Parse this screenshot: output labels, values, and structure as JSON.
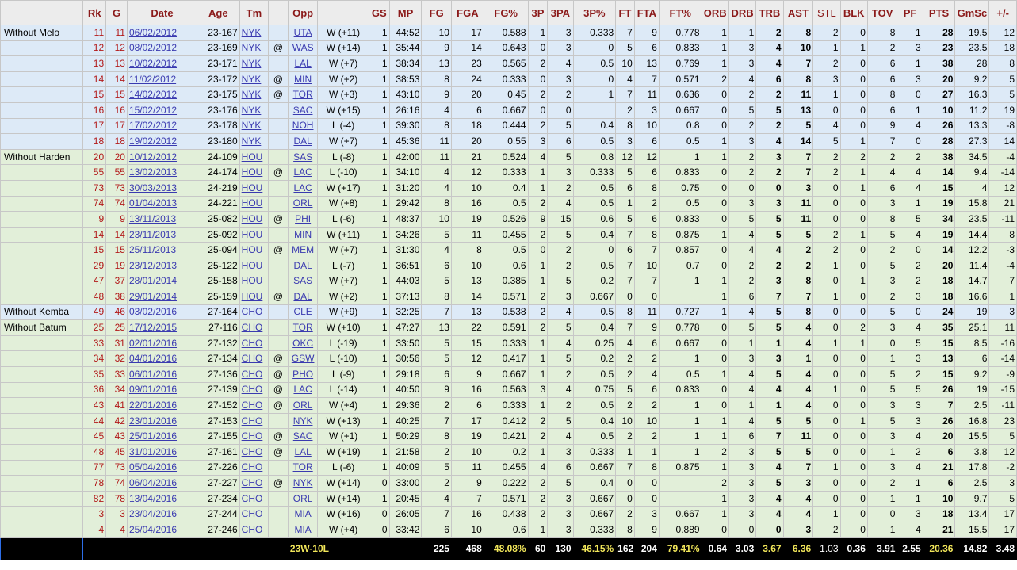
{
  "columns": [
    "",
    "Rk",
    "G",
    "Date",
    "Age",
    "Tm",
    "",
    "Opp",
    "",
    "GS",
    "MP",
    "FG",
    "FGA",
    "FG%",
    "3P",
    "3PA",
    "3P%",
    "FT",
    "FTA",
    "FT%",
    "ORB",
    "DRB",
    "TRB",
    "AST",
    "STL",
    "BLK",
    "TOV",
    "PF",
    "PTS",
    "GmSc",
    "+/-"
  ],
  "rows": [
    [
      "Without Melo",
      "11",
      "11",
      "06/02/2012",
      "23-167",
      "NYK",
      "",
      "UTA",
      "W (+11)",
      "1",
      "44:52",
      "10",
      "17",
      "0.588",
      "1",
      "3",
      "0.333",
      "7",
      "9",
      "0.778",
      "1",
      "1",
      "2",
      "8",
      "2",
      "0",
      "8",
      "1",
      "28",
      "19.5",
      "12"
    ],
    [
      "",
      "12",
      "12",
      "08/02/2012",
      "23-169",
      "NYK",
      "@",
      "WAS",
      "W (+14)",
      "1",
      "35:44",
      "9",
      "14",
      "0.643",
      "0",
      "3",
      "0",
      "5",
      "6",
      "0.833",
      "1",
      "3",
      "4",
      "10",
      "1",
      "1",
      "2",
      "3",
      "23",
      "23.5",
      "18"
    ],
    [
      "",
      "13",
      "13",
      "10/02/2012",
      "23-171",
      "NYK",
      "",
      "LAL",
      "W (+7)",
      "1",
      "38:34",
      "13",
      "23",
      "0.565",
      "2",
      "4",
      "0.5",
      "10",
      "13",
      "0.769",
      "1",
      "3",
      "4",
      "7",
      "2",
      "0",
      "6",
      "1",
      "38",
      "28",
      "8"
    ],
    [
      "",
      "14",
      "14",
      "11/02/2012",
      "23-172",
      "NYK",
      "@",
      "MIN",
      "W (+2)",
      "1",
      "38:53",
      "8",
      "24",
      "0.333",
      "0",
      "3",
      "0",
      "4",
      "7",
      "0.571",
      "2",
      "4",
      "6",
      "8",
      "3",
      "0",
      "6",
      "3",
      "20",
      "9.2",
      "5"
    ],
    [
      "",
      "15",
      "15",
      "14/02/2012",
      "23-175",
      "NYK",
      "@",
      "TOR",
      "W (+3)",
      "1",
      "43:10",
      "9",
      "20",
      "0.45",
      "2",
      "2",
      "1",
      "7",
      "11",
      "0.636",
      "0",
      "2",
      "2",
      "11",
      "1",
      "0",
      "8",
      "0",
      "27",
      "16.3",
      "5"
    ],
    [
      "",
      "16",
      "16",
      "15/02/2012",
      "23-176",
      "NYK",
      "",
      "SAC",
      "W (+15)",
      "1",
      "26:16",
      "4",
      "6",
      "0.667",
      "0",
      "0",
      "",
      "2",
      "3",
      "0.667",
      "0",
      "5",
      "5",
      "13",
      "0",
      "0",
      "6",
      "1",
      "10",
      "11.2",
      "19"
    ],
    [
      "",
      "17",
      "17",
      "17/02/2012",
      "23-178",
      "NYK",
      "",
      "NOH",
      "L (-4)",
      "1",
      "39:30",
      "8",
      "18",
      "0.444",
      "2",
      "5",
      "0.4",
      "8",
      "10",
      "0.8",
      "0",
      "2",
      "2",
      "5",
      "4",
      "0",
      "9",
      "4",
      "26",
      "13.3",
      "-8"
    ],
    [
      "",
      "18",
      "18",
      "19/02/2012",
      "23-180",
      "NYK",
      "",
      "DAL",
      "W (+7)",
      "1",
      "45:36",
      "11",
      "20",
      "0.55",
      "3",
      "6",
      "0.5",
      "3",
      "6",
      "0.5",
      "1",
      "3",
      "4",
      "14",
      "5",
      "1",
      "7",
      "0",
      "28",
      "27.3",
      "14"
    ],
    [
      "Without Harden",
      "20",
      "20",
      "10/12/2012",
      "24-109",
      "HOU",
      "",
      "SAS",
      "L (-8)",
      "1",
      "42:00",
      "11",
      "21",
      "0.524",
      "4",
      "5",
      "0.8",
      "12",
      "12",
      "1",
      "1",
      "2",
      "3",
      "7",
      "2",
      "2",
      "2",
      "2",
      "38",
      "34.5",
      "-4"
    ],
    [
      "",
      "55",
      "55",
      "13/02/2013",
      "24-174",
      "HOU",
      "@",
      "LAC",
      "L (-10)",
      "1",
      "34:10",
      "4",
      "12",
      "0.333",
      "1",
      "3",
      "0.333",
      "5",
      "6",
      "0.833",
      "0",
      "2",
      "2",
      "7",
      "2",
      "1",
      "4",
      "4",
      "14",
      "9.4",
      "-14"
    ],
    [
      "",
      "73",
      "73",
      "30/03/2013",
      "24-219",
      "HOU",
      "",
      "LAC",
      "W (+17)",
      "1",
      "31:20",
      "4",
      "10",
      "0.4",
      "1",
      "2",
      "0.5",
      "6",
      "8",
      "0.75",
      "0",
      "0",
      "0",
      "3",
      "0",
      "1",
      "6",
      "4",
      "15",
      "4",
      "12"
    ],
    [
      "",
      "74",
      "74",
      "01/04/2013",
      "24-221",
      "HOU",
      "",
      "ORL",
      "W (+8)",
      "1",
      "29:42",
      "8",
      "16",
      "0.5",
      "2",
      "4",
      "0.5",
      "1",
      "2",
      "0.5",
      "0",
      "3",
      "3",
      "11",
      "0",
      "0",
      "3",
      "1",
      "19",
      "15.8",
      "21"
    ],
    [
      "",
      "9",
      "9",
      "13/11/2013",
      "25-082",
      "HOU",
      "@",
      "PHI",
      "L (-6)",
      "1",
      "48:37",
      "10",
      "19",
      "0.526",
      "9",
      "15",
      "0.6",
      "5",
      "6",
      "0.833",
      "0",
      "5",
      "5",
      "11",
      "0",
      "0",
      "8",
      "5",
      "34",
      "23.5",
      "-11"
    ],
    [
      "",
      "14",
      "14",
      "23/11/2013",
      "25-092",
      "HOU",
      "",
      "MIN",
      "W (+11)",
      "1",
      "34:26",
      "5",
      "11",
      "0.455",
      "2",
      "5",
      "0.4",
      "7",
      "8",
      "0.875",
      "1",
      "4",
      "5",
      "5",
      "2",
      "1",
      "5",
      "4",
      "19",
      "14.4",
      "8"
    ],
    [
      "",
      "15",
      "15",
      "25/11/2013",
      "25-094",
      "HOU",
      "@",
      "MEM",
      "W (+7)",
      "1",
      "31:30",
      "4",
      "8",
      "0.5",
      "0",
      "2",
      "0",
      "6",
      "7",
      "0.857",
      "0",
      "4",
      "4",
      "2",
      "2",
      "0",
      "2",
      "0",
      "14",
      "12.2",
      "-3"
    ],
    [
      "",
      "29",
      "19",
      "23/12/2013",
      "25-122",
      "HOU",
      "",
      "DAL",
      "L (-7)",
      "1",
      "36:51",
      "6",
      "10",
      "0.6",
      "1",
      "2",
      "0.5",
      "7",
      "10",
      "0.7",
      "0",
      "2",
      "2",
      "2",
      "1",
      "0",
      "5",
      "2",
      "20",
      "11.4",
      "-4"
    ],
    [
      "",
      "47",
      "37",
      "28/01/2014",
      "25-158",
      "HOU",
      "",
      "SAS",
      "W (+7)",
      "1",
      "44:03",
      "5",
      "13",
      "0.385",
      "1",
      "5",
      "0.2",
      "7",
      "7",
      "1",
      "1",
      "2",
      "3",
      "8",
      "0",
      "1",
      "3",
      "2",
      "18",
      "14.7",
      "7"
    ],
    [
      "",
      "48",
      "38",
      "29/01/2014",
      "25-159",
      "HOU",
      "@",
      "DAL",
      "W (+2)",
      "1",
      "37:13",
      "8",
      "14",
      "0.571",
      "2",
      "3",
      "0.667",
      "0",
      "0",
      "",
      "1",
      "6",
      "7",
      "7",
      "1",
      "0",
      "2",
      "3",
      "18",
      "16.6",
      "1"
    ],
    [
      "Without Kemba",
      "49",
      "46",
      "03/02/2016",
      "27-164",
      "CHO",
      "",
      "CLE",
      "W (+9)",
      "1",
      "32:25",
      "7",
      "13",
      "0.538",
      "2",
      "4",
      "0.5",
      "8",
      "11",
      "0.727",
      "1",
      "4",
      "5",
      "8",
      "0",
      "0",
      "5",
      "0",
      "24",
      "19",
      "3"
    ],
    [
      "Without Batum",
      "25",
      "25",
      "17/12/2015",
      "27-116",
      "CHO",
      "",
      "TOR",
      "W (+10)",
      "1",
      "47:27",
      "13",
      "22",
      "0.591",
      "2",
      "5",
      "0.4",
      "7",
      "9",
      "0.778",
      "0",
      "5",
      "5",
      "4",
      "0",
      "2",
      "3",
      "4",
      "35",
      "25.1",
      "11"
    ],
    [
      "",
      "33",
      "31",
      "02/01/2016",
      "27-132",
      "CHO",
      "",
      "OKC",
      "L (-19)",
      "1",
      "33:50",
      "5",
      "15",
      "0.333",
      "1",
      "4",
      "0.25",
      "4",
      "6",
      "0.667",
      "0",
      "1",
      "1",
      "4",
      "1",
      "1",
      "0",
      "5",
      "15",
      "8.5",
      "-16"
    ],
    [
      "",
      "34",
      "32",
      "04/01/2016",
      "27-134",
      "CHO",
      "@",
      "GSW",
      "L (-10)",
      "1",
      "30:56",
      "5",
      "12",
      "0.417",
      "1",
      "5",
      "0.2",
      "2",
      "2",
      "1",
      "0",
      "3",
      "3",
      "1",
      "0",
      "0",
      "1",
      "3",
      "13",
      "6",
      "-14"
    ],
    [
      "",
      "35",
      "33",
      "06/01/2016",
      "27-136",
      "CHO",
      "@",
      "PHO",
      "L (-9)",
      "1",
      "29:18",
      "6",
      "9",
      "0.667",
      "1",
      "2",
      "0.5",
      "2",
      "4",
      "0.5",
      "1",
      "4",
      "5",
      "4",
      "0",
      "0",
      "5",
      "2",
      "15",
      "9.2",
      "-9"
    ],
    [
      "",
      "36",
      "34",
      "09/01/2016",
      "27-139",
      "CHO",
      "@",
      "LAC",
      "L (-14)",
      "1",
      "40:50",
      "9",
      "16",
      "0.563",
      "3",
      "4",
      "0.75",
      "5",
      "6",
      "0.833",
      "0",
      "4",
      "4",
      "4",
      "1",
      "0",
      "5",
      "5",
      "26",
      "19",
      "-15"
    ],
    [
      "",
      "43",
      "41",
      "22/01/2016",
      "27-152",
      "CHO",
      "@",
      "ORL",
      "W (+4)",
      "1",
      "29:36",
      "2",
      "6",
      "0.333",
      "1",
      "2",
      "0.5",
      "2",
      "2",
      "1",
      "0",
      "1",
      "1",
      "4",
      "0",
      "0",
      "3",
      "3",
      "7",
      "2.5",
      "-11"
    ],
    [
      "",
      "44",
      "42",
      "23/01/2016",
      "27-153",
      "CHO",
      "",
      "NYK",
      "W (+13)",
      "1",
      "40:25",
      "7",
      "17",
      "0.412",
      "2",
      "5",
      "0.4",
      "10",
      "10",
      "1",
      "1",
      "4",
      "5",
      "5",
      "0",
      "1",
      "5",
      "3",
      "26",
      "16.8",
      "23"
    ],
    [
      "",
      "45",
      "43",
      "25/01/2016",
      "27-155",
      "CHO",
      "@",
      "SAC",
      "W (+1)",
      "1",
      "50:29",
      "8",
      "19",
      "0.421",
      "2",
      "4",
      "0.5",
      "2",
      "2",
      "1",
      "1",
      "6",
      "7",
      "11",
      "0",
      "0",
      "3",
      "4",
      "20",
      "15.5",
      "5"
    ],
    [
      "",
      "48",
      "45",
      "31/01/2016",
      "27-161",
      "CHO",
      "@",
      "LAL",
      "W (+19)",
      "1",
      "21:58",
      "2",
      "10",
      "0.2",
      "1",
      "3",
      "0.333",
      "1",
      "1",
      "1",
      "2",
      "3",
      "5",
      "5",
      "0",
      "0",
      "1",
      "2",
      "6",
      "3.8",
      "12"
    ],
    [
      "",
      "77",
      "73",
      "05/04/2016",
      "27-226",
      "CHO",
      "",
      "TOR",
      "L (-6)",
      "1",
      "40:09",
      "5",
      "11",
      "0.455",
      "4",
      "6",
      "0.667",
      "7",
      "8",
      "0.875",
      "1",
      "3",
      "4",
      "7",
      "1",
      "0",
      "3",
      "4",
      "21",
      "17.8",
      "-2"
    ],
    [
      "",
      "78",
      "74",
      "06/04/2016",
      "27-227",
      "CHO",
      "@",
      "NYK",
      "W (+14)",
      "0",
      "33:00",
      "2",
      "9",
      "0.222",
      "2",
      "5",
      "0.4",
      "0",
      "0",
      "",
      "2",
      "3",
      "5",
      "3",
      "0",
      "0",
      "2",
      "1",
      "6",
      "2.5",
      "3"
    ],
    [
      "",
      "82",
      "78",
      "13/04/2016",
      "27-234",
      "CHO",
      "",
      "ORL",
      "W (+14)",
      "1",
      "20:45",
      "4",
      "7",
      "0.571",
      "2",
      "3",
      "0.667",
      "0",
      "0",
      "",
      "1",
      "3",
      "4",
      "4",
      "0",
      "0",
      "1",
      "1",
      "10",
      "9.7",
      "5"
    ],
    [
      "",
      "3",
      "3",
      "23/04/2016",
      "27-244",
      "CHO",
      "",
      "MIA",
      "W (+16)",
      "0",
      "26:05",
      "7",
      "16",
      "0.438",
      "2",
      "3",
      "0.667",
      "2",
      "3",
      "0.667",
      "1",
      "3",
      "4",
      "4",
      "1",
      "0",
      "0",
      "3",
      "18",
      "13.4",
      "17"
    ],
    [
      "",
      "4",
      "4",
      "25/04/2016",
      "27-246",
      "CHO",
      "",
      "MIA",
      "W (+4)",
      "0",
      "33:42",
      "6",
      "10",
      "0.6",
      "1",
      "3",
      "0.333",
      "8",
      "9",
      "0.889",
      "0",
      "0",
      "0",
      "3",
      "2",
      "0",
      "1",
      "4",
      "21",
      "15.5",
      "17"
    ]
  ],
  "row_groups": [
    "blue",
    "blue",
    "blue",
    "blue",
    "blue",
    "blue",
    "blue",
    "blue",
    "green",
    "green",
    "green",
    "green",
    "green",
    "green",
    "green",
    "green",
    "green",
    "green",
    "blue",
    "green",
    "green",
    "green",
    "green",
    "green",
    "green",
    "green",
    "green",
    "green",
    "green",
    "green",
    "green",
    "green",
    "green"
  ],
  "totals": [
    "",
    "",
    "",
    "",
    "",
    "",
    "",
    "23W-10L",
    "",
    "",
    "",
    "225",
    "468",
    "48.08%",
    "60",
    "130",
    "46.15%",
    "162",
    "204",
    "79.41%",
    "0.64",
    "3.03",
    "3.67",
    "6.36",
    "1.03",
    "0.36",
    "3.91",
    "2.55",
    "20.36",
    "14.82",
    "3.48"
  ],
  "colors": {
    "header_text": "#8b1a1a",
    "row_blue": "#ddeaf7",
    "row_green": "#e2efd9",
    "link": "#3a3ab0",
    "totals_bg": "#000000",
    "totals_highlight": "#f1e65a",
    "selection_border": "#2d6ee8"
  }
}
